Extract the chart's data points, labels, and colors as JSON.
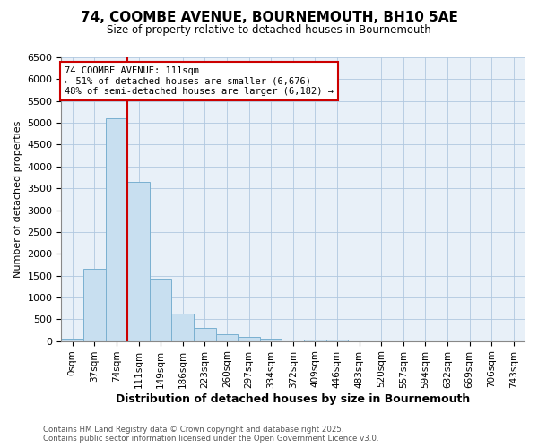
{
  "title_line1": "74, COOMBE AVENUE, BOURNEMOUTH, BH10 5AE",
  "title_line2": "Size of property relative to detached houses in Bournemouth",
  "xlabel": "Distribution of detached houses by size in Bournemouth",
  "ylabel": "Number of detached properties",
  "categories": [
    "0sqm",
    "37sqm",
    "74sqm",
    "111sqm",
    "149sqm",
    "186sqm",
    "223sqm",
    "260sqm",
    "297sqm",
    "334sqm",
    "372sqm",
    "409sqm",
    "446sqm",
    "483sqm",
    "520sqm",
    "557sqm",
    "594sqm",
    "632sqm",
    "669sqm",
    "706sqm",
    "743sqm"
  ],
  "values": [
    55,
    1650,
    5100,
    3650,
    1430,
    620,
    310,
    150,
    90,
    50,
    0,
    40,
    40,
    0,
    0,
    0,
    0,
    0,
    0,
    0,
    0
  ],
  "bar_color": "#c8dff0",
  "bar_edge_color": "#7ab0d0",
  "vline_color": "#cc0000",
  "vline_x": 3.0,
  "annotation_text": "74 COOMBE AVENUE: 111sqm\n← 51% of detached houses are smaller (6,676)\n48% of semi-detached houses are larger (6,182) →",
  "annotation_box_color": "#cc0000",
  "ylim": [
    0,
    6500
  ],
  "yticks": [
    0,
    500,
    1000,
    1500,
    2000,
    2500,
    3000,
    3500,
    4000,
    4500,
    5000,
    5500,
    6000,
    6500
  ],
  "footer_line1": "Contains HM Land Registry data © Crown copyright and database right 2025.",
  "footer_line2": "Contains public sector information licensed under the Open Government Licence v3.0.",
  "background_color": "#ffffff",
  "plot_bg_color": "#e8f0f8"
}
